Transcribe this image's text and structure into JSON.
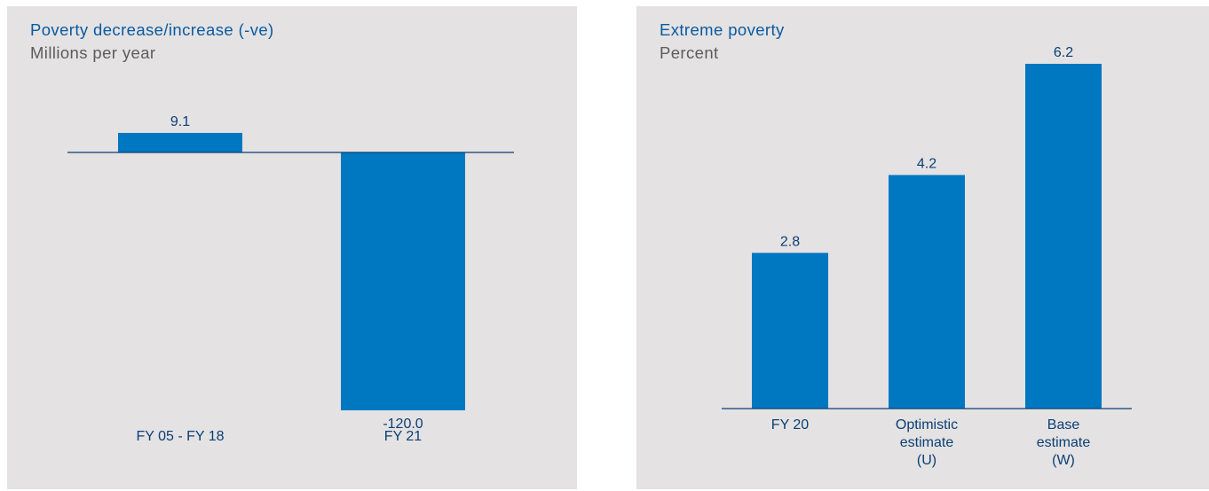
{
  "colors": {
    "bar": "#0077c1",
    "axis": "#0a3f73",
    "title": "#0a5aa0",
    "subtitle": "#5c5c5c",
    "label": "#0a3f73",
    "panel": "#e4e2e3"
  },
  "chart_data": [
    {
      "type": "bar",
      "title": "Poverty decrease/increase (-ve)",
      "subtitle": "Millions per year",
      "categories": [
        [
          "FY 05 - FY 18"
        ],
        [
          "FY 21"
        ]
      ],
      "values": [
        9.1,
        -120.0
      ],
      "value_labels": [
        "9.1",
        "-120.0"
      ],
      "ylim": [
        -120,
        9.1
      ],
      "grid": false,
      "legend": "none"
    },
    {
      "type": "bar",
      "title": "Extreme poverty",
      "subtitle": "Percent",
      "categories": [
        [
          "FY 20"
        ],
        [
          "Optimistic",
          "estimate",
          "(U)"
        ],
        [
          "Base",
          "estimate",
          "(W)"
        ]
      ],
      "values": [
        2.8,
        4.2,
        6.2
      ],
      "value_labels": [
        "2.8",
        "4.2",
        "6.2"
      ],
      "ylim": [
        0,
        6.2
      ],
      "grid": false,
      "legend": "none"
    }
  ]
}
